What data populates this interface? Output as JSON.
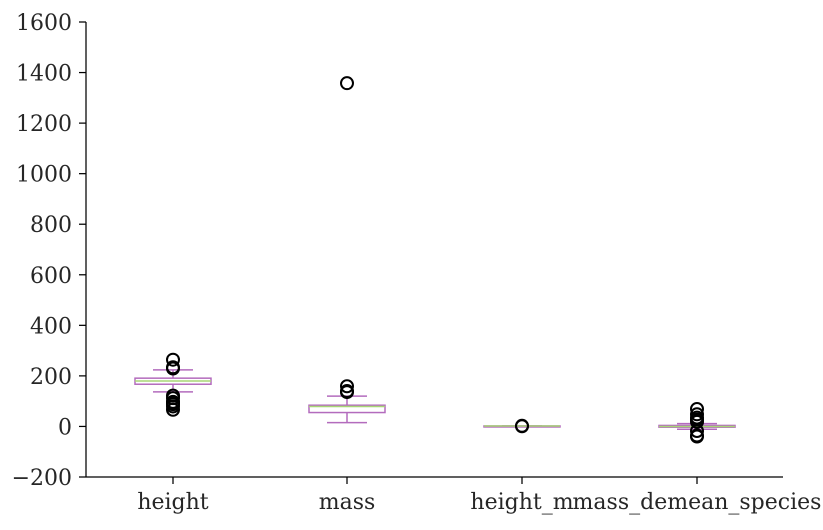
{
  "chart_data": {
    "type": "box",
    "categories": [
      "height",
      "mass",
      "height_m",
      "mass_demean_species"
    ],
    "ylim": [
      -200,
      1600
    ],
    "yticks": [
      -200,
      0,
      200,
      400,
      600,
      800,
      1000,
      1200,
      1400,
      1600
    ],
    "ytick_labels": [
      "−200",
      "0",
      "200",
      "400",
      "600",
      "800",
      "1000",
      "1200",
      "1400",
      "1600"
    ],
    "grid": false,
    "colors": {
      "box": "#b36bbd",
      "median": "#a8d676",
      "flier": "#000000",
      "axis": "#000000"
    },
    "boxes": [
      {
        "label": "height",
        "whisker_low": 137,
        "q1": 167,
        "median": 180,
        "q3": 191,
        "whisker_high": 224,
        "fliers": [
          66,
          79,
          88,
          94,
          96,
          97,
          112,
          122,
          229,
          234,
          264
        ]
      },
      {
        "label": "mass",
        "whisker_low": 15,
        "q1": 55,
        "median": 79,
        "q3": 84,
        "whisker_high": 120,
        "fliers": [
          136,
          140,
          159,
          1358
        ]
      },
      {
        "label": "height_m",
        "whisker_low": 1.37,
        "q1": 1.67,
        "median": 1.8,
        "q3": 1.91,
        "whisker_high": 2.24,
        "fliers": [
          0.66,
          2.64
        ]
      },
      {
        "label": "mass_demean_species",
        "whisker_low": -11,
        "q1": -3,
        "median": 0,
        "q3": 4,
        "whisker_high": 11,
        "fliers": [
          -40,
          -36,
          -18,
          18,
          27,
          35,
          48,
          69
        ]
      }
    ]
  }
}
